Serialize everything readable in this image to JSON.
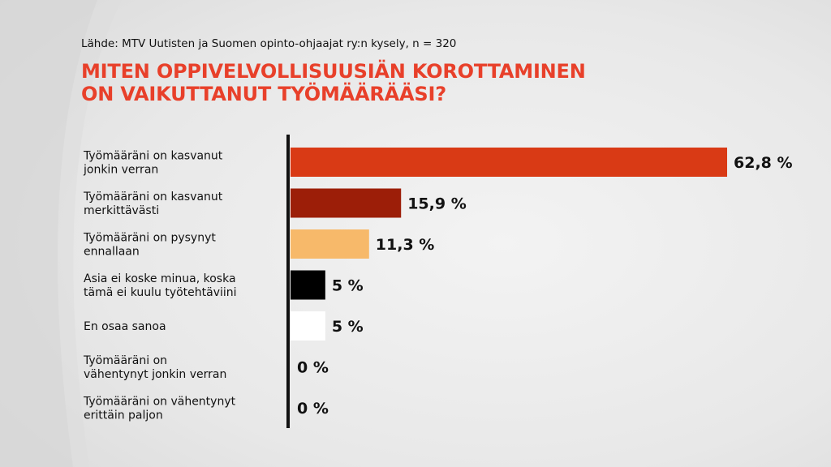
{
  "source": "Lähde: MTV Uutisten ja Suomen opinto-ohjaajat ry:n kysely, n = 320",
  "title_lines": [
    "MITEN OPPIVELVOLLISUUSIÄN KOROTTAMINEN",
    "ON VAIKUTTANUT TYÖMÄÄRÄÄSI?"
  ],
  "colors": {
    "title": "#e8402a",
    "axis": "#111111"
  },
  "chart_data": {
    "type": "bar",
    "orientation": "horizontal",
    "categories": [
      [
        "Työmääräni on kasvanut",
        "jonkin verran"
      ],
      [
        "Työmääräni on kasvanut",
        "merkittävästi"
      ],
      [
        "Työmääräni on pysynyt",
        "ennallaan"
      ],
      [
        "Asia ei koske minua, koska",
        "tämä ei kuulu työtehtäviini"
      ],
      [
        "En osaa sanoa"
      ],
      [
        "Työmääräni on",
        "vähentynyt jonkin verran"
      ],
      [
        "Työmääräni on vähentynyt",
        "erittäin paljon"
      ]
    ],
    "values": [
      62.8,
      15.9,
      11.3,
      5,
      5,
      0,
      0
    ],
    "value_labels": [
      "62,8 %",
      "15,9 %",
      "11,3 %",
      "5 %",
      "5 %",
      "0 %",
      "0 %"
    ],
    "bar_colors": [
      "#d93a15",
      "#9c1e08",
      "#f7b96a",
      "#000000",
      "#ffffff",
      "#ffffff",
      "#ffffff"
    ],
    "xlim": [
      0,
      62.8
    ]
  }
}
